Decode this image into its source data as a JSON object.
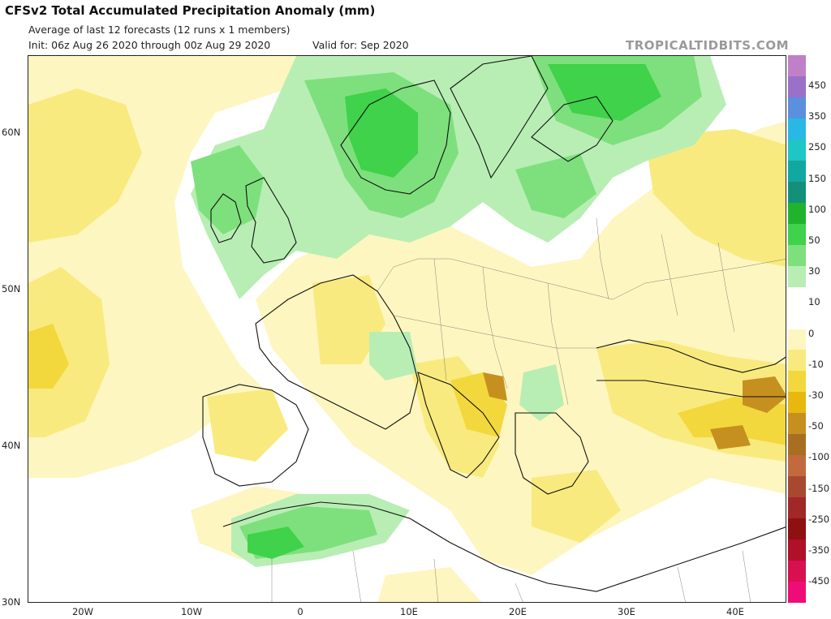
{
  "header": {
    "title": "CFSv2 Total Accumulated Precipitation Anomaly (mm)",
    "subtitle": "Average of last 12 forecasts (12 runs x 1 members)",
    "init": "Init: 06z Aug 26 2020 through 00z Aug 29 2020",
    "valid": "Valid for: Sep 2020",
    "watermark": "TROPICALTIDBITS.COM"
  },
  "map": {
    "region": "Europe",
    "lat_labels": [
      {
        "text": "60N",
        "value": 60
      },
      {
        "text": "50N",
        "value": 50
      },
      {
        "text": "40N",
        "value": 40
      },
      {
        "text": "30N",
        "value": 30
      }
    ],
    "lon_labels": [
      {
        "text": "20W",
        "value": -20
      },
      {
        "text": "10W",
        "value": -10
      },
      {
        "text": "0",
        "value": 0
      },
      {
        "text": "10E",
        "value": 10
      },
      {
        "text": "20E",
        "value": 20
      },
      {
        "text": "30E",
        "value": 30
      },
      {
        "text": "40E",
        "value": 40
      }
    ]
  },
  "colorbar": {
    "labels": [
      "450",
      "350",
      "250",
      "150",
      "100",
      "50",
      "30",
      "10",
      "0",
      "-10",
      "-30",
      "-50",
      "-100",
      "-150",
      "-250",
      "-350",
      "-450"
    ],
    "colors": [
      "#c080c8",
      "#9a70c8",
      "#5a90dd",
      "#28b8e6",
      "#1ec6c4",
      "#12a8a0",
      "#14907a",
      "#20b42c",
      "#3fd24a",
      "#7ee07c",
      "#b8eeb4",
      "#ffffff",
      "#ffffff",
      "#fdf6c0",
      "#f8ea7e",
      "#f2d83c",
      "#e8b80e",
      "#c69020",
      "#a86e22",
      "#c26a3e",
      "#a84830",
      "#a02828",
      "#8e1010",
      "#b01028",
      "#d81050",
      "#f00c78"
    ]
  }
}
